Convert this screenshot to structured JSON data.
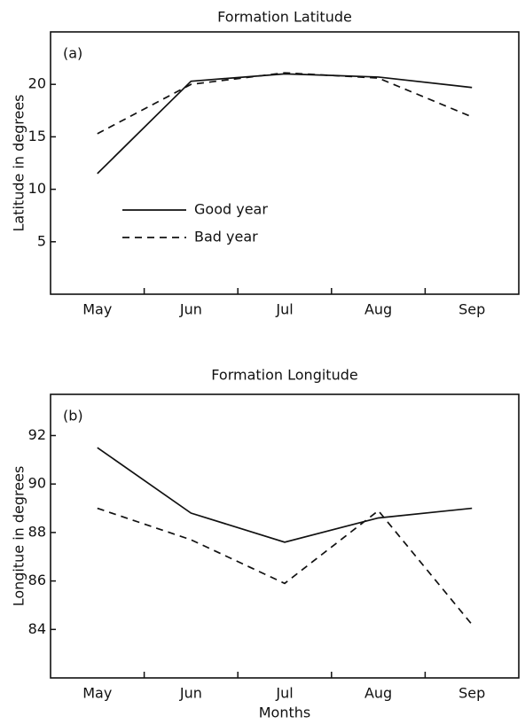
{
  "chart_data": [
    {
      "type": "line",
      "title": "Formation Latitude",
      "label": "(a)",
      "y_label": "Latitude in degrees",
      "categories": [
        "May",
        "Jun",
        "Jul",
        "Aug",
        "Sep"
      ],
      "series": [
        {
          "name": "Good year",
          "color": "#111111",
          "style": "solid",
          "values": [
            11.5,
            20.3,
            21.0,
            20.7,
            19.7
          ]
        },
        {
          "name": "Bad year",
          "color": "#111111",
          "style": "dashed",
          "values": [
            15.3,
            20.0,
            21.1,
            20.6,
            16.9
          ]
        }
      ],
      "ylim": [
        0,
        25
      ],
      "yticks": [
        5,
        10,
        15,
        20
      ],
      "legend": "lower-left"
    },
    {
      "type": "line",
      "title": "Formation Longitude",
      "label": "(b)",
      "y_label": "Longitue in degrees",
      "x_label": "Months",
      "categories": [
        "May",
        "Jun",
        "Jul",
        "Aug",
        "Sep"
      ],
      "series": [
        {
          "color": "#111111",
          "style": "solid",
          "values": [
            91.5,
            88.8,
            87.6,
            88.6,
            89.0
          ]
        },
        {
          "color": "#111111",
          "style": "dashed",
          "values": [
            89.0,
            87.7,
            85.9,
            88.9,
            84.2
          ]
        }
      ],
      "ylim": [
        82,
        93.7
      ],
      "yticks": [
        84,
        86,
        88,
        90,
        92
      ]
    }
  ]
}
